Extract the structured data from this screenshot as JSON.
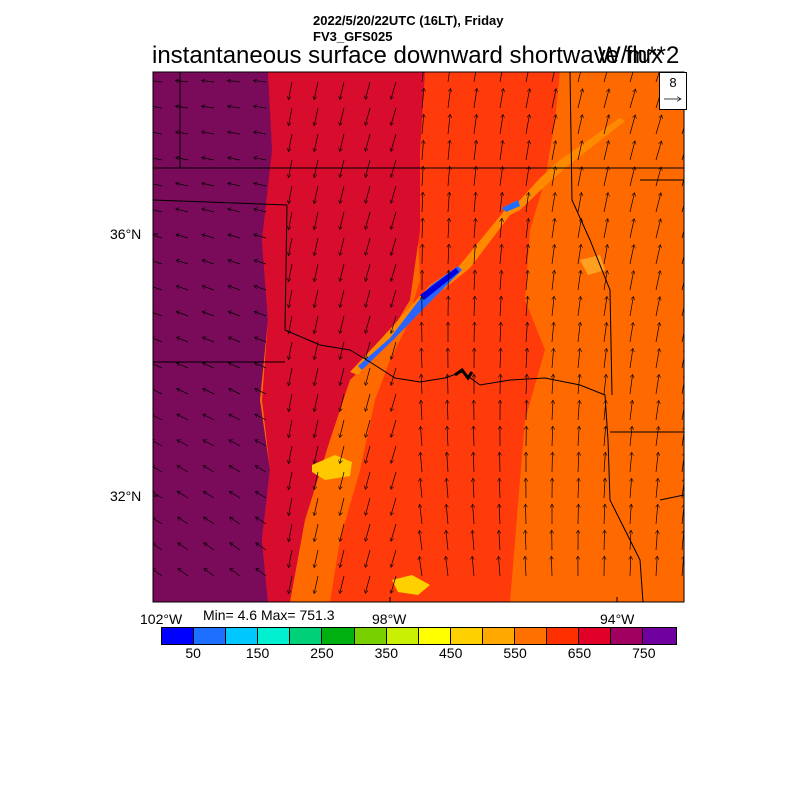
{
  "header": {
    "datetime": "2022/5/20/22UTC (16LT), Friday",
    "model": "FV3_GFS025",
    "title": "instantaneous surface downward shortwave flux",
    "units": "W/m**2"
  },
  "map": {
    "lat_labels": [
      "36°N",
      "32°N"
    ],
    "lon_labels": [
      "102°W",
      "98°W",
      "94°W"
    ],
    "reference_vector": "8",
    "stats": "Min= 4.6 Max= 751.3"
  },
  "colorbar": {
    "colors": [
      "#0000ff",
      "#1e6eff",
      "#00c8ff",
      "#00f0d0",
      "#00d078",
      "#00b010",
      "#78d000",
      "#c8f000",
      "#ffff00",
      "#ffd000",
      "#ffa800",
      "#ff7000",
      "#ff3000",
      "#e00028",
      "#a00060",
      "#7000a0"
    ],
    "labels": [
      "50",
      "150",
      "250",
      "350",
      "450",
      "550",
      "650",
      "750"
    ]
  },
  "field_colors": {
    "west": "#7a0a5a",
    "west_edge": "#a00a4c",
    "mid": "#d80c2c",
    "east": "#ff3b0c",
    "far_east": "#ff6a00",
    "boundary": "#000000"
  }
}
